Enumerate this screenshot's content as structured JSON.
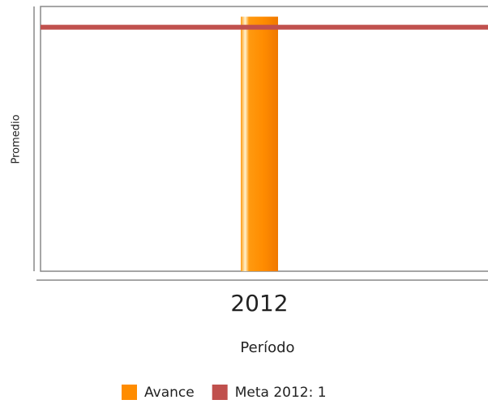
{
  "chart_data": {
    "type": "bar",
    "categories": [
      "2012"
    ],
    "series": [
      {
        "name": "Avance",
        "color": "#ff8c00",
        "values": [
          1
        ]
      },
      {
        "name": "Meta 2012: 1",
        "color": "#c0504d",
        "type": "line",
        "values": [
          1
        ]
      }
    ],
    "ylim": [
      0,
      1.04
    ],
    "xlabel": "Período",
    "ylabel": "Promedio",
    "legend": "bottom"
  }
}
